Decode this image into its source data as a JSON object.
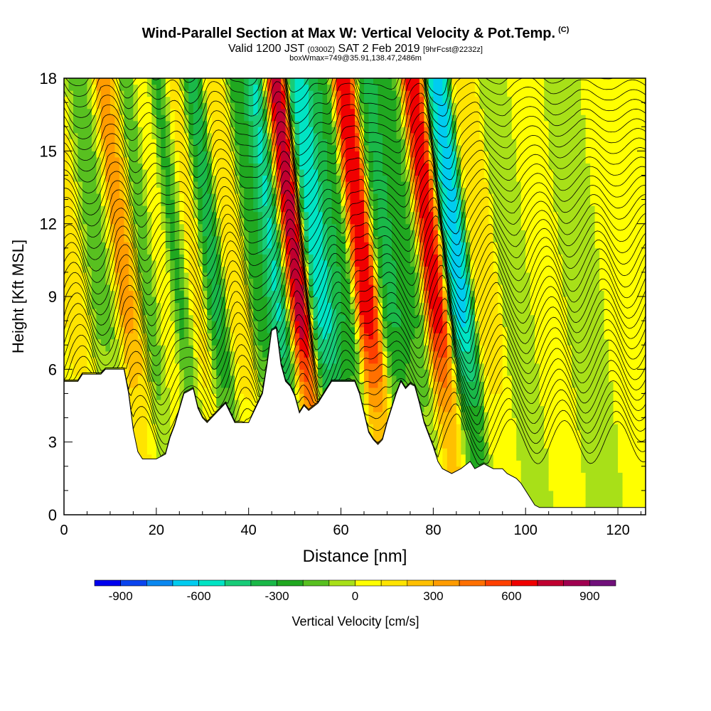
{
  "header": {
    "title": "Wind-Parallel Section at Max W: Vertical Velocity & Pot.Temp.",
    "copyright": "(C)",
    "subtitle_a": "Valid 1200 JST",
    "subtitle_b": "(0300Z)",
    "subtitle_c": "SAT 2 Feb 2019",
    "subtitle_d": "[9hrFcst@2232z]",
    "subtitle2": "boxWmax=749@35.91,138.47,2486m"
  },
  "chart_data": {
    "type": "heatmap",
    "xlabel": "Distance [nm]",
    "ylabel": "Height [Kft MSL]",
    "xlim": [
      0,
      126
    ],
    "ylim": [
      0,
      18
    ],
    "xticks": [
      0,
      20,
      40,
      60,
      80,
      100,
      120
    ],
    "yticks": [
      0,
      3,
      6,
      9,
      12,
      15,
      18
    ],
    "colorbar": {
      "label": "Vertical Velocity [cm/s]",
      "tick_labels": [
        "-900",
        "-600",
        "-300",
        "0",
        "300",
        "600",
        "900"
      ],
      "tick_values": [
        -900,
        -600,
        -300,
        0,
        300,
        600,
        900
      ],
      "levels": [
        -1000,
        -900,
        -800,
        -700,
        -600,
        -500,
        -400,
        -300,
        -200,
        -100,
        0,
        100,
        200,
        300,
        400,
        500,
        600,
        700,
        800,
        900,
        1000
      ],
      "colors": [
        "#0000ee",
        "#0a44ee",
        "#0a88f0",
        "#00ccf0",
        "#00e4c4",
        "#18cc78",
        "#1ab848",
        "#20a820",
        "#58c020",
        "#a8e018",
        "#ffff00",
        "#ffe400",
        "#ffc000",
        "#ff9c00",
        "#ff7000",
        "#ff4000",
        "#f00000",
        "#c00030",
        "#a00050",
        "#70107a"
      ]
    },
    "terrain_height_kft": [
      [
        0,
        5.5
      ],
      [
        3,
        5.5
      ],
      [
        4,
        5.8
      ],
      [
        8,
        5.8
      ],
      [
        9,
        6.0
      ],
      [
        13,
        6.0
      ],
      [
        14,
        5.0
      ],
      [
        15,
        3.5
      ],
      [
        16,
        2.6
      ],
      [
        17,
        2.3
      ],
      [
        20,
        2.3
      ],
      [
        22,
        2.5
      ],
      [
        23,
        3.2
      ],
      [
        24,
        3.7
      ],
      [
        26,
        5.0
      ],
      [
        28,
        5.2
      ],
      [
        29,
        4.4
      ],
      [
        30,
        4.0
      ],
      [
        31,
        3.8
      ],
      [
        33,
        4.2
      ],
      [
        35,
        4.6
      ],
      [
        36,
        4.2
      ],
      [
        37,
        3.8
      ],
      [
        40,
        3.8
      ],
      [
        41,
        4.2
      ],
      [
        43,
        5.0
      ],
      [
        44,
        6.2
      ],
      [
        45,
        7.6
      ],
      [
        46,
        7.7
      ],
      [
        47,
        6.2
      ],
      [
        48,
        5.5
      ],
      [
        49,
        5.3
      ],
      [
        50,
        4.9
      ],
      [
        51,
        4.2
      ],
      [
        52,
        4.5
      ],
      [
        53,
        4.3
      ],
      [
        55,
        4.6
      ],
      [
        57,
        5.2
      ],
      [
        58,
        5.5
      ],
      [
        63,
        5.5
      ],
      [
        64,
        5.0
      ],
      [
        65,
        4.2
      ],
      [
        66,
        3.4
      ],
      [
        67,
        3.1
      ],
      [
        68,
        2.9
      ],
      [
        69,
        3.1
      ],
      [
        70,
        3.8
      ],
      [
        71,
        4.4
      ],
      [
        72,
        5.0
      ],
      [
        73,
        5.5
      ],
      [
        74,
        5.2
      ],
      [
        75,
        5.4
      ],
      [
        76,
        5.3
      ],
      [
        77,
        4.6
      ],
      [
        78,
        3.8
      ],
      [
        79,
        3.3
      ],
      [
        80,
        2.8
      ],
      [
        81,
        2.2
      ],
      [
        82,
        1.9
      ],
      [
        84,
        1.7
      ],
      [
        86,
        1.9
      ],
      [
        88,
        2.2
      ],
      [
        89,
        1.9
      ],
      [
        91,
        2.1
      ],
      [
        93,
        1.9
      ],
      [
        95,
        1.9
      ],
      [
        96,
        1.7
      ],
      [
        98,
        1.5
      ],
      [
        99,
        1.3
      ],
      [
        100,
        1.0
      ],
      [
        101,
        0.7
      ],
      [
        102,
        0.4
      ],
      [
        103,
        0.3
      ],
      [
        126,
        0.3
      ]
    ],
    "w_bands_cm_s": [
      {
        "x": 3,
        "w": 150
      },
      {
        "x": 8,
        "w": -120
      },
      {
        "x": 15,
        "w": 330
      },
      {
        "x": 19,
        "w": -250
      },
      {
        "x": 22,
        "w": 150
      },
      {
        "x": 26,
        "w": -300
      },
      {
        "x": 29,
        "w": 250
      },
      {
        "x": 33,
        "w": -350
      },
      {
        "x": 38,
        "w": 200
      },
      {
        "x": 43,
        "w": -250
      },
      {
        "x": 47,
        "w": -550
      },
      {
        "x": 51,
        "w": 820
      },
      {
        "x": 56,
        "w": -560
      },
      {
        "x": 61,
        "w": -300
      },
      {
        "x": 66,
        "w": 680
      },
      {
        "x": 71,
        "w": -320
      },
      {
        "x": 76,
        "w": -220
      },
      {
        "x": 81,
        "w": 660
      },
      {
        "x": 86,
        "w": -620
      },
      {
        "x": 92,
        "w": 180
      },
      {
        "x": 98,
        "w": -80
      },
      {
        "x": 105,
        "w": 60
      },
      {
        "x": 113,
        "w": -60
      },
      {
        "x": 121,
        "w": 40
      }
    ]
  }
}
